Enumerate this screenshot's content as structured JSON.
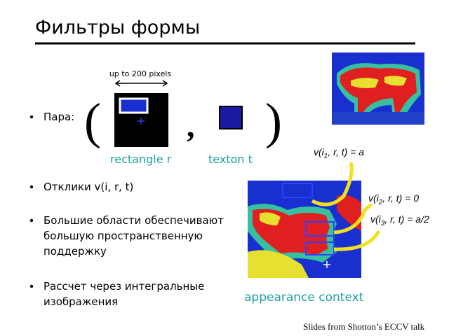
{
  "title": "Фильтры формы",
  "filter_pair": {
    "span_label": "up to 200 pixels",
    "open_paren": "(",
    "comma": ",",
    "close_paren": ")",
    "rectangle_label": "rectangle r",
    "texton_label": "texton t"
  },
  "bullets": [
    {
      "lines": [
        "Пара:"
      ]
    },
    {
      "lines": [
        "Отклики v(i, r, t)"
      ]
    },
    {
      "lines": [
        "Большие области обеспечивают",
        "большую пространственную",
        "поддержку"
      ]
    },
    {
      "lines": [
        "Рассчет через интегральные",
        "изображения"
      ]
    }
  ],
  "equations": [
    {
      "parts": [
        "v(i",
        "1",
        ", r, t) = a"
      ]
    },
    {
      "parts": [
        "v(i",
        "2",
        ", r, t) = 0"
      ]
    },
    {
      "parts": [
        "v(i",
        "3",
        ", r, t) = a/2"
      ]
    }
  ],
  "context_label": "appearance context",
  "credit": "Slides from Shotton’s ECCV talk"
}
